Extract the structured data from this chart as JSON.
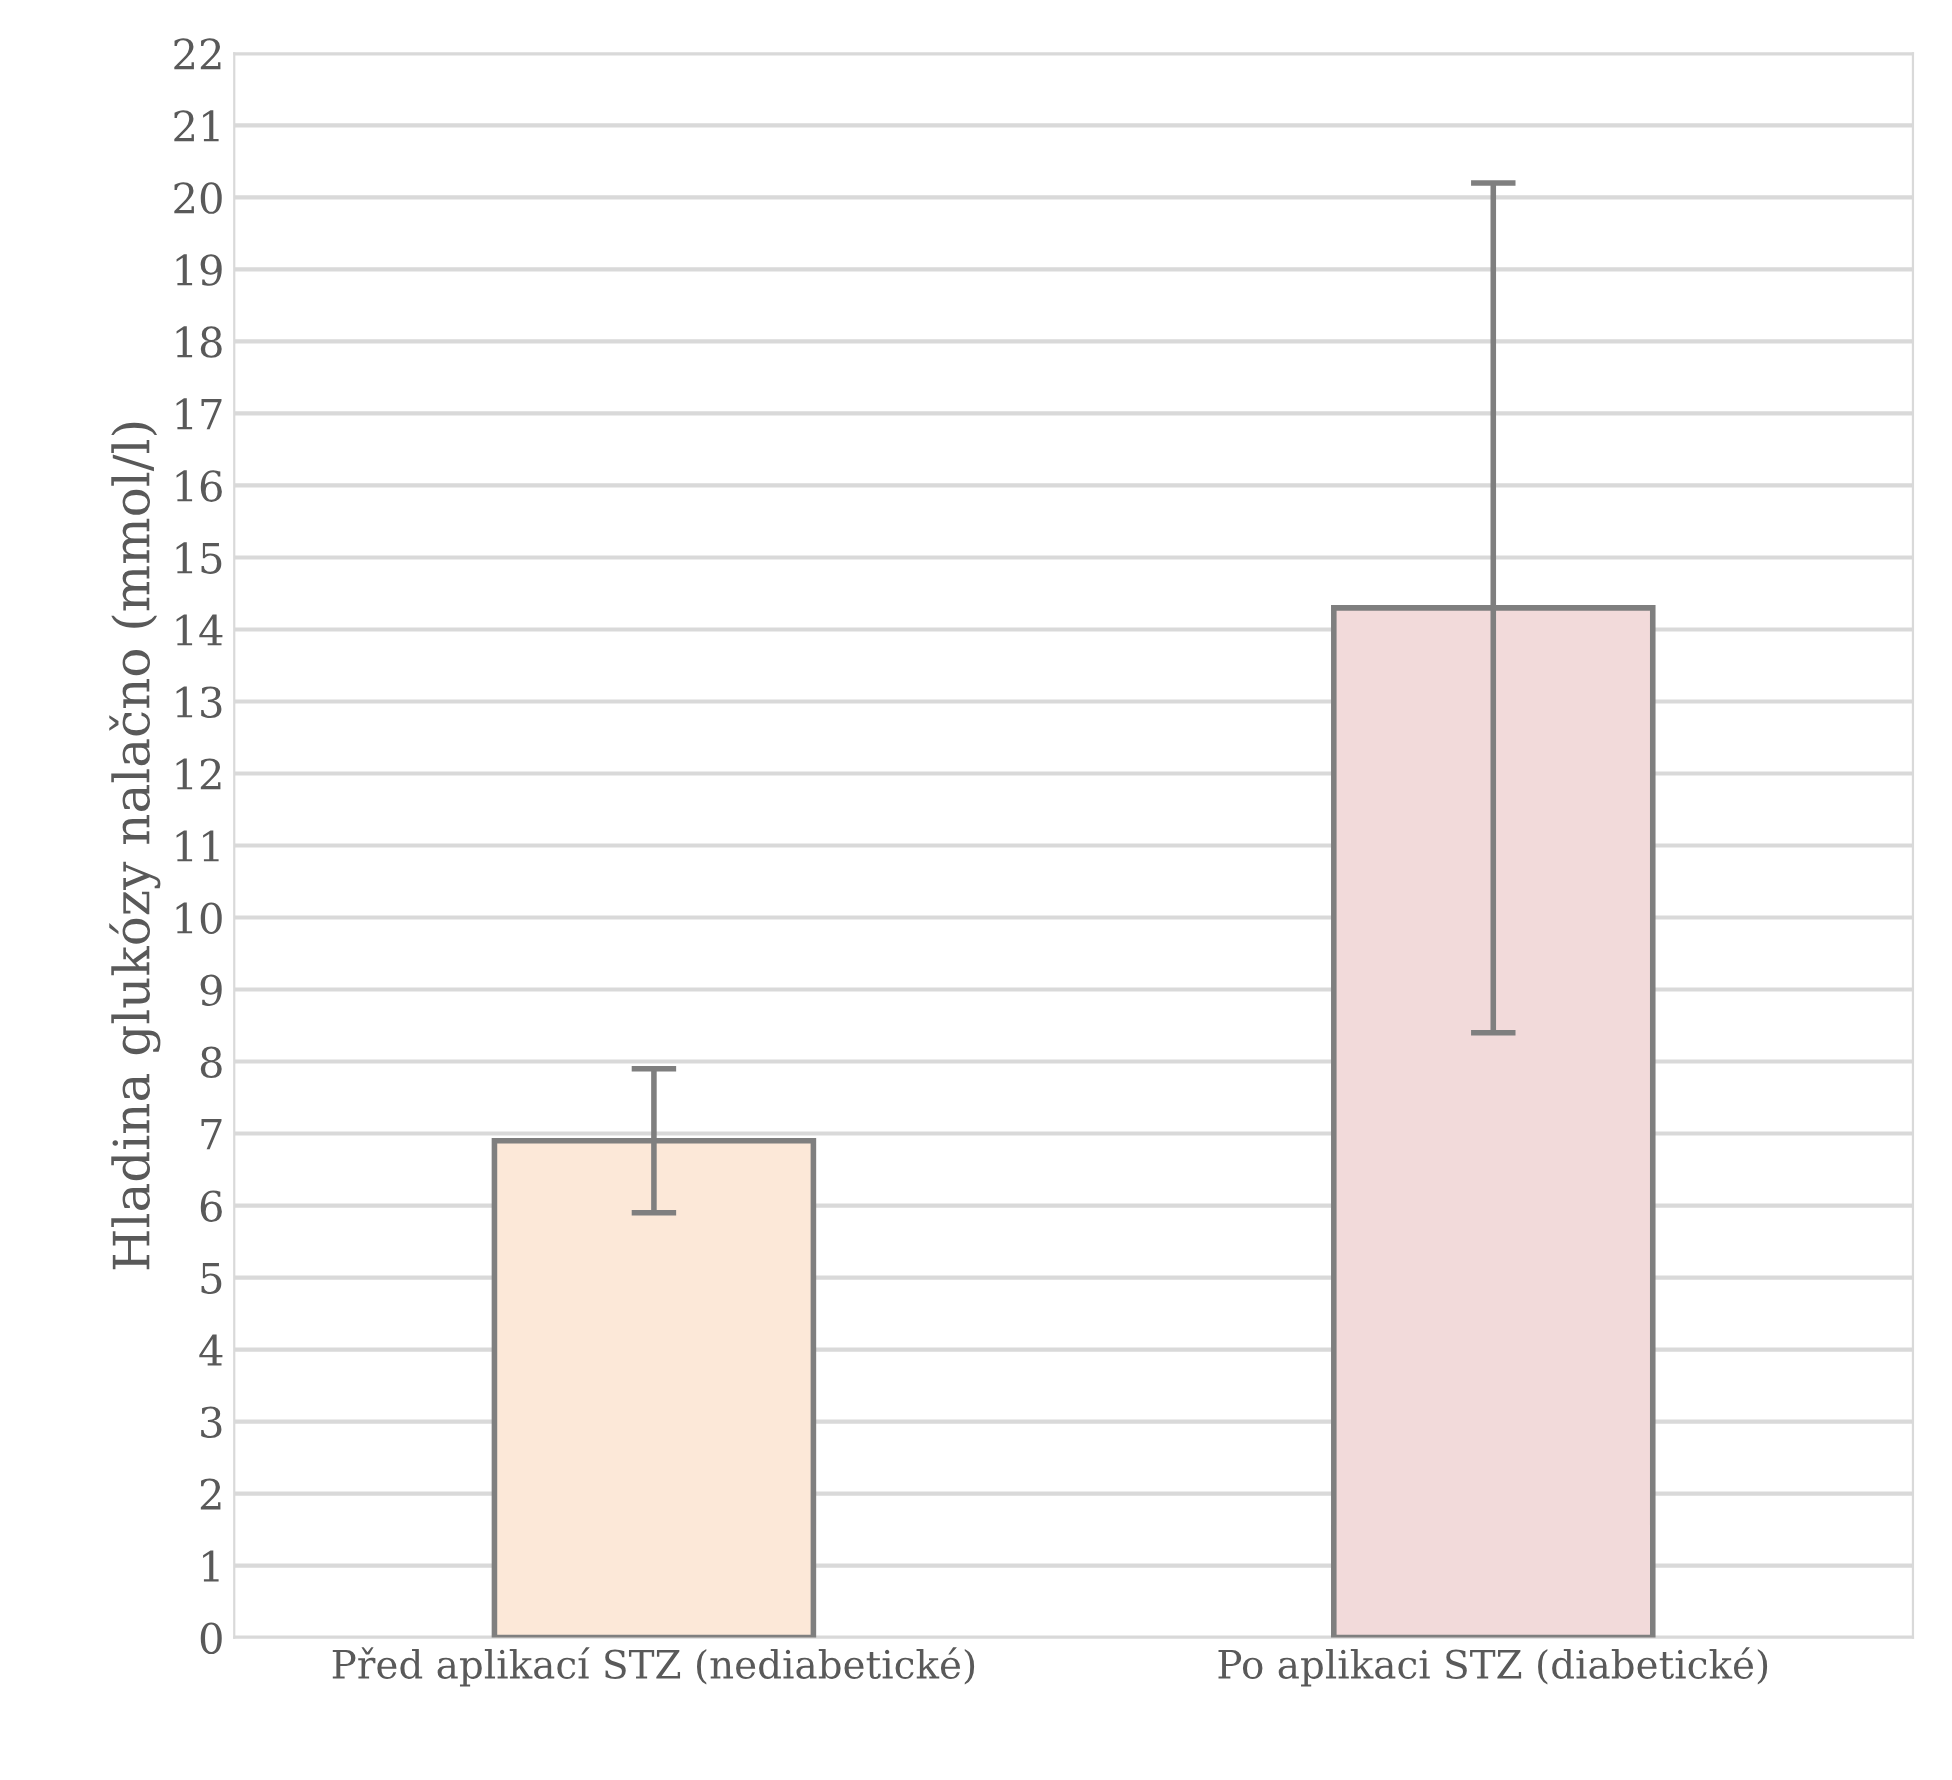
{
  "chart_data": {
    "type": "bar",
    "categories": [
      "Před aplikací STZ (nediabetické)",
      "Po aplikaci STZ (diabetické)"
    ],
    "values": [
      6.9,
      14.3
    ],
    "errors": [
      1.0,
      5.9
    ],
    "colors": [
      "#fce8d8",
      "#f2dada"
    ],
    "ylabel": "Hladina glukózy nalačno (mmol/l)",
    "ylim": [
      0,
      22
    ],
    "yticks": [
      0,
      1,
      2,
      3,
      4,
      5,
      6,
      7,
      8,
      9,
      10,
      11,
      12,
      13,
      14,
      15,
      16,
      17,
      18,
      19,
      20,
      21,
      22
    ],
    "grid": "y"
  }
}
